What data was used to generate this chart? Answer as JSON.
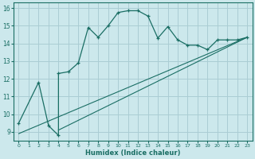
{
  "xlabel": "Humidex (Indice chaleur)",
  "bg_color": "#cce8ec",
  "grid_color": "#aacdd4",
  "line_color": "#1a6e64",
  "xlim": [
    -0.5,
    23.5
  ],
  "ylim": [
    8.5,
    16.3
  ],
  "x_ticks": [
    0,
    1,
    2,
    3,
    4,
    5,
    6,
    7,
    8,
    9,
    10,
    11,
    12,
    13,
    14,
    15,
    16,
    17,
    18,
    19,
    20,
    21,
    22,
    23
  ],
  "y_ticks": [
    9,
    10,
    11,
    12,
    13,
    14,
    15,
    16
  ],
  "curve1_x": [
    0,
    2,
    3,
    4,
    4,
    5,
    6,
    7,
    8,
    9,
    10,
    11,
    12,
    13,
    14,
    15,
    16,
    17,
    18,
    19,
    20,
    21,
    22,
    23
  ],
  "curve1_y": [
    9.5,
    11.8,
    9.35,
    8.8,
    12.3,
    12.4,
    12.9,
    14.9,
    14.35,
    15.0,
    15.75,
    15.85,
    15.85,
    15.55,
    14.3,
    14.95,
    14.2,
    13.9,
    13.9,
    13.65,
    14.2,
    14.2,
    14.2,
    14.35
  ],
  "curve2_x": [
    0,
    23
  ],
  "curve2_y": [
    8.9,
    14.35
  ],
  "curve3_x": [
    4,
    23
  ],
  "curve3_y": [
    9.1,
    14.35
  ]
}
